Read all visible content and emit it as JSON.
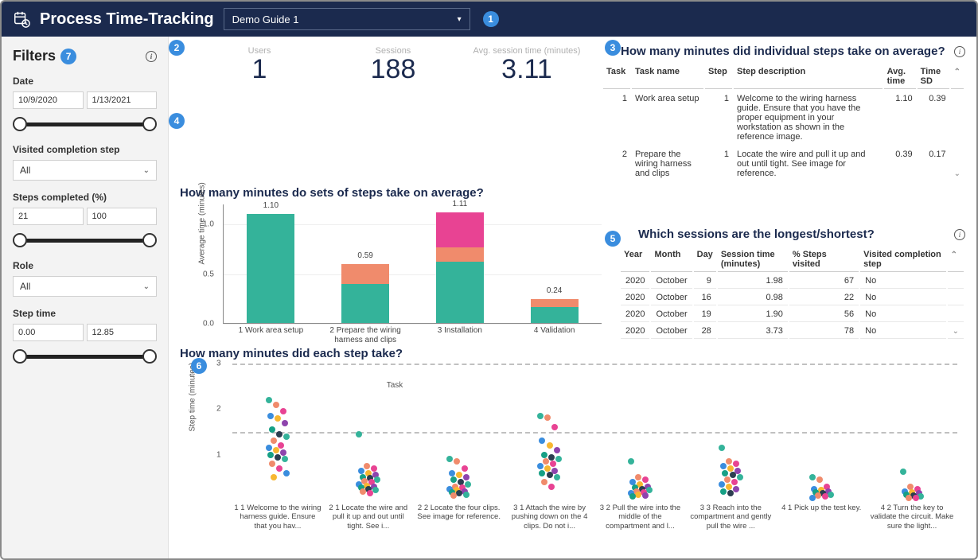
{
  "header": {
    "title": "Process Time-Tracking",
    "guide_selected": "Demo Guide 1"
  },
  "badges": {
    "b1": "1",
    "b2": "2",
    "b3": "3",
    "b4": "4",
    "b5": "5",
    "b6": "6",
    "b7": "7"
  },
  "filters": {
    "title": "Filters",
    "date_label": "Date",
    "date_from": "10/9/2020",
    "date_to": "1/13/2021",
    "visited_label": "Visited completion step",
    "visited_value": "All",
    "steps_pct_label": "Steps completed (%)",
    "steps_from": "21",
    "steps_to": "100",
    "role_label": "Role",
    "role_value": "All",
    "step_time_label": "Step time",
    "st_from": "0.00",
    "st_to": "12.85"
  },
  "kpis": {
    "users_label": "Users",
    "users_value": "1",
    "sessions_label": "Sessions",
    "sessions_value": "188",
    "avg_label": "Avg. session time (minutes)",
    "avg_value": "3.11"
  },
  "chart3": {
    "title": "How many minutes did individual steps take on average?",
    "cols": {
      "task": "Task",
      "task_name": "Task name",
      "step": "Step",
      "desc": "Step description",
      "avg": "Avg. time",
      "sd": "Time SD"
    },
    "rows": [
      {
        "task": "1",
        "name": "Work area setup",
        "step": "1",
        "desc": "Welcome to the wiring harness guide. Ensure that you have the proper equipment in your workstation as shown in the reference image.",
        "avg": "1.10",
        "sd": "0.39"
      },
      {
        "task": "2",
        "name": "Prepare the wiring harness and clips",
        "step": "1",
        "desc": "Locate the wire and pull it up and out until tight. See image for reference.",
        "avg": "0.39",
        "sd": "0.17"
      }
    ]
  },
  "chart4": {
    "title": "How many minutes do sets of steps take on average?",
    "y_label": "Average time (minutes)",
    "x_label": "Task",
    "ymax": 1.2,
    "yticks": [
      "0.0",
      "0.5",
      "1.0"
    ],
    "colors": {
      "teal": "#34b39a",
      "coral": "#f08b6c",
      "pink": "#e84393"
    },
    "bars": [
      {
        "label": "1 Work area setup",
        "total": "1.10",
        "segs": [
          {
            "v": 1.1,
            "c": "teal"
          }
        ]
      },
      {
        "label": "2 Prepare the wiring harness and clips",
        "total": "0.59",
        "segs": [
          {
            "v": 0.39,
            "c": "teal"
          },
          {
            "v": 0.2,
            "c": "coral"
          }
        ]
      },
      {
        "label": "3 Installation",
        "total": "1.11",
        "segs": [
          {
            "v": 0.62,
            "c": "teal"
          },
          {
            "v": 0.14,
            "c": "coral"
          },
          {
            "v": 0.35,
            "c": "pink"
          }
        ]
      },
      {
        "label": "4 Validation",
        "total": "0.24",
        "segs": [
          {
            "v": 0.16,
            "c": "teal"
          },
          {
            "v": 0.08,
            "c": "coral"
          }
        ]
      }
    ]
  },
  "chart5": {
    "title": "Which sessions are the longest/shortest?",
    "cols": {
      "year": "Year",
      "month": "Month",
      "day": "Day",
      "time": "Session time (minutes)",
      "pct": "% Steps visited",
      "vis": "Visited completion step"
    },
    "rows": [
      {
        "year": "2020",
        "month": "October",
        "day": "9",
        "time": "1.98",
        "pct": "67",
        "vis": "No"
      },
      {
        "year": "2020",
        "month": "October",
        "day": "16",
        "time": "0.98",
        "pct": "22",
        "vis": "No"
      },
      {
        "year": "2020",
        "month": "October",
        "day": "19",
        "time": "1.90",
        "pct": "56",
        "vis": "No"
      },
      {
        "year": "2020",
        "month": "October",
        "day": "28",
        "time": "3.73",
        "pct": "78",
        "vis": "No"
      }
    ]
  },
  "chart6": {
    "title": "How many minutes did each step take?",
    "y_label": "Step time (minutes)",
    "ymax": 3,
    "dash_at": 1.5,
    "yticks": [
      "1",
      "2",
      "3"
    ],
    "palette": [
      "#34b39a",
      "#f08b6c",
      "#e84393",
      "#3a8dde",
      "#f7b731",
      "#8e44ad",
      "#16a085",
      "#2c3e50"
    ],
    "cats": [
      {
        "label": "1 1 Welcome to the wiring harness guide. Ensure that you hav...",
        "pts": [
          2.2,
          2.1,
          1.95,
          1.85,
          1.8,
          1.7,
          1.55,
          1.45,
          1.4,
          1.3,
          1.2,
          1.15,
          1.1,
          1.05,
          1.0,
          0.95,
          0.9,
          0.8,
          0.7,
          0.6,
          0.5
        ]
      },
      {
        "label": "2 1 Locate the wire and pull it up and out until tight. See i...",
        "pts": [
          1.45,
          0.75,
          0.7,
          0.65,
          0.6,
          0.55,
          0.5,
          0.48,
          0.45,
          0.42,
          0.4,
          0.35,
          0.32,
          0.3,
          0.28,
          0.25,
          0.22,
          0.2,
          0.15
        ]
      },
      {
        "label": "2 2 Locate the four clips. See image for reference.",
        "pts": [
          0.9,
          0.85,
          0.7,
          0.6,
          0.55,
          0.5,
          0.45,
          0.4,
          0.35,
          0.3,
          0.28,
          0.25,
          0.22,
          0.2,
          0.18,
          0.15,
          0.12,
          0.1
        ]
      },
      {
        "label": "3 1 Attach the wire by pushing down on the 4 clips. Do not i...",
        "pts": [
          1.85,
          1.82,
          1.6,
          1.3,
          1.2,
          1.1,
          1.0,
          0.95,
          0.9,
          0.85,
          0.8,
          0.75,
          0.7,
          0.65,
          0.6,
          0.55,
          0.5,
          0.4,
          0.3
        ]
      },
      {
        "label": "3 2 Pull the wire into the middle of the compartment and l...",
        "pts": [
          0.85,
          0.5,
          0.45,
          0.4,
          0.35,
          0.3,
          0.28,
          0.25,
          0.22,
          0.2,
          0.18,
          0.15,
          0.12,
          0.1,
          0.08
        ]
      },
      {
        "label": "3 3 Reach into the compartment and gently pull the wire ...",
        "pts": [
          1.15,
          0.85,
          0.8,
          0.75,
          0.7,
          0.65,
          0.6,
          0.55,
          0.5,
          0.45,
          0.4,
          0.35,
          0.3,
          0.25,
          0.2,
          0.15
        ]
      },
      {
        "label": "4 1 Pick up the test key.",
        "pts": [
          0.5,
          0.45,
          0.3,
          0.25,
          0.22,
          0.2,
          0.18,
          0.15,
          0.12,
          0.1,
          0.08,
          0.06
        ]
      },
      {
        "label": "4 2 Turn the key to validate the circuit. Make sure the light...",
        "pts": [
          0.62,
          0.3,
          0.25,
          0.2,
          0.18,
          0.15,
          0.12,
          0.1,
          0.08,
          0.06,
          0.05
        ]
      }
    ]
  }
}
